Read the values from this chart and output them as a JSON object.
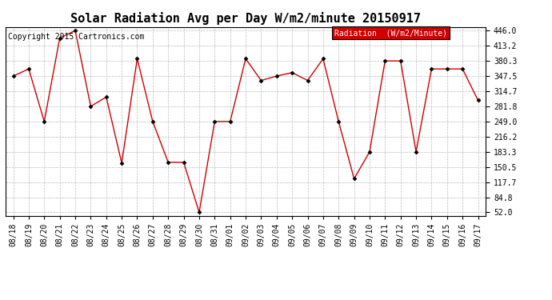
{
  "title": "Solar Radiation Avg per Day W/m2/minute 20150917",
  "copyright": "Copyright 2015 Cartronics.com",
  "legend_label": "Radiation  (W/m2/Minute)",
  "dates": [
    "08/18",
    "08/19",
    "08/20",
    "08/21",
    "08/22",
    "08/23",
    "08/24",
    "08/25",
    "08/26",
    "08/27",
    "08/28",
    "08/29",
    "08/30",
    "08/31",
    "09/01",
    "09/02",
    "09/03",
    "09/04",
    "09/05",
    "09/06",
    "09/07",
    "09/08",
    "09/09",
    "09/10",
    "09/11",
    "09/12",
    "09/13",
    "09/14",
    "09/15",
    "09/16",
    "09/17"
  ],
  "values": [
    347.5,
    363.0,
    249.0,
    430.0,
    446.0,
    281.8,
    302.0,
    159.0,
    385.0,
    249.0,
    160.5,
    160.5,
    52.0,
    249.0,
    249.0,
    385.0,
    338.0,
    347.5,
    355.0,
    338.0,
    385.0,
    249.0,
    125.0,
    183.3,
    380.3,
    380.3,
    183.3,
    363.0,
    363.0,
    363.0,
    295.0
  ],
  "ylim_min": 52.0,
  "ylim_max": 446.0,
  "yticks": [
    52.0,
    84.8,
    117.7,
    150.5,
    183.3,
    216.2,
    249.0,
    281.8,
    314.7,
    347.5,
    380.3,
    413.2,
    446.0
  ],
  "line_color": "#cc0000",
  "marker_color": "#000000",
  "bg_color": "#ffffff",
  "grid_color": "#bbbbbb",
  "title_fontsize": 11,
  "copyright_fontsize": 7,
  "tick_fontsize": 7,
  "legend_bg": "#cc0000",
  "legend_text_color": "#ffffff",
  "legend_fontsize": 7
}
